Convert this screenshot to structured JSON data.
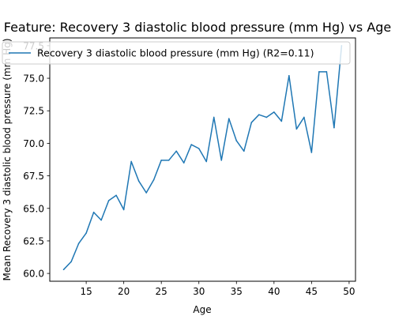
{
  "chart_data": {
    "type": "line",
    "title": "Feature: Recovery 3 diastolic blood pressure (mm Hg) vs Age",
    "xlabel": "Age",
    "ylabel": "Mean Recovery 3 diastolic blood pressure (mm Hg)",
    "xlim": [
      10.15,
      50.85
    ],
    "ylim": [
      59.4,
      78.1
    ],
    "x_ticks": [
      15,
      20,
      25,
      30,
      35,
      40,
      45,
      50
    ],
    "y_ticks": [
      60.0,
      62.5,
      65.0,
      67.5,
      70.0,
      72.5,
      75.0,
      77.5
    ],
    "grid": false,
    "legend_position": "top-right",
    "colors": {
      "series": "#1f77b4",
      "axes": "#000000",
      "background": "#ffffff"
    },
    "series": [
      {
        "name": "Recovery 3 diastolic blood pressure (mm Hg) (R2=0.11)",
        "x": [
          12,
          13,
          14,
          15,
          16,
          17,
          18,
          19,
          20,
          21,
          22,
          23,
          24,
          25,
          26,
          27,
          28,
          29,
          30,
          31,
          32,
          33,
          34,
          35,
          36,
          37,
          38,
          39,
          40,
          41,
          42,
          43,
          44,
          45,
          46,
          47,
          48,
          49
        ],
        "y": [
          60.3,
          60.9,
          62.3,
          63.1,
          64.7,
          64.1,
          65.6,
          66.0,
          64.9,
          68.6,
          67.1,
          66.2,
          67.2,
          68.7,
          68.7,
          69.4,
          68.5,
          69.9,
          69.6,
          68.6,
          72.0,
          68.7,
          71.9,
          70.2,
          69.4,
          71.6,
          72.2,
          72.0,
          72.4,
          71.7,
          75.2,
          71.1,
          72.0,
          69.3,
          75.5,
          75.5,
          71.2,
          77.5
        ]
      }
    ]
  }
}
